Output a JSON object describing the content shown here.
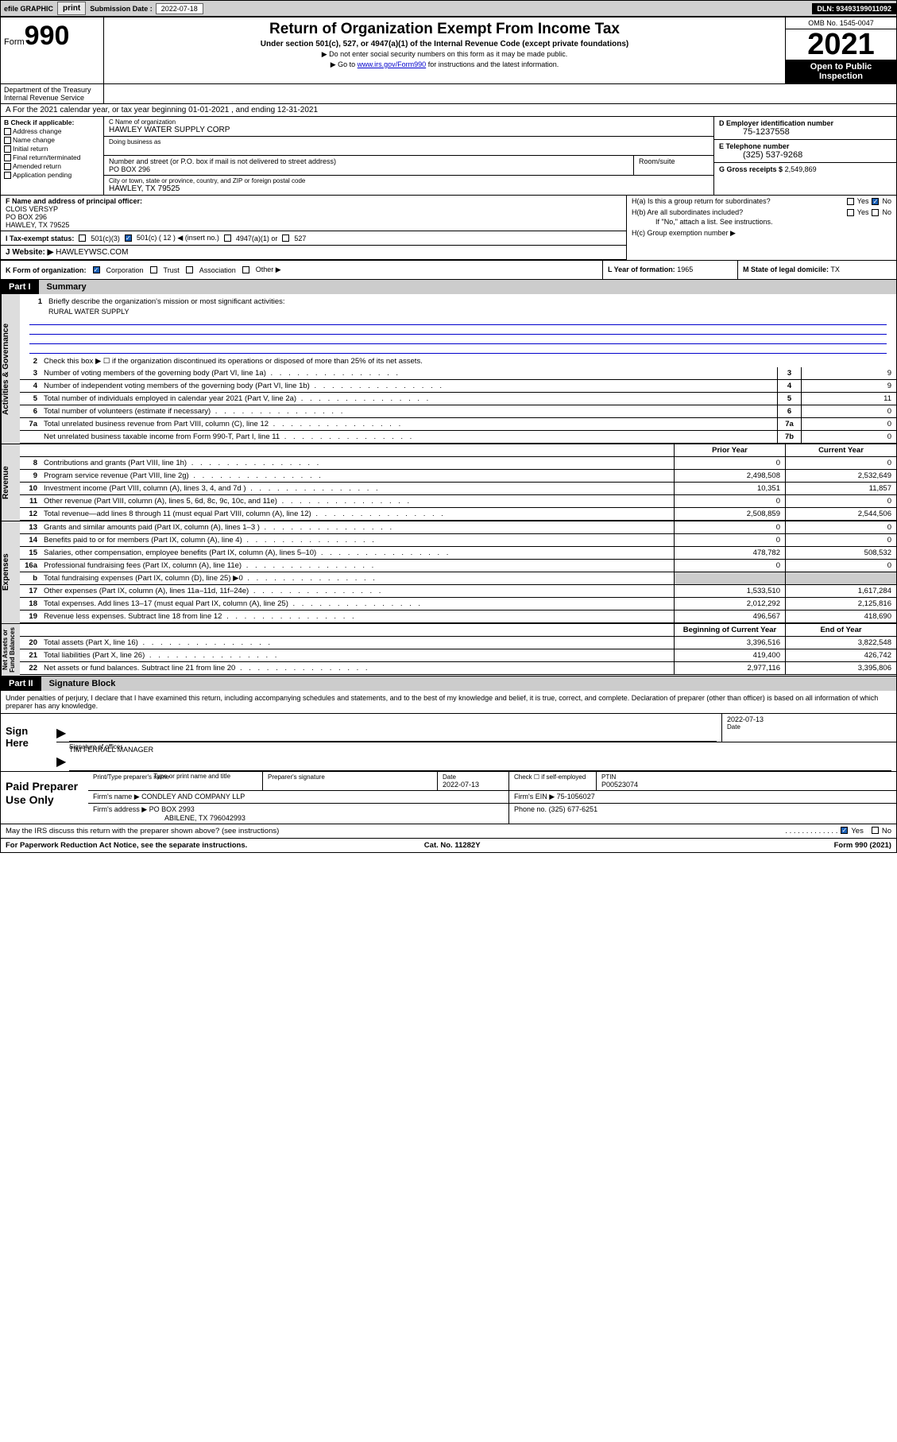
{
  "topbar": {
    "efile": "efile GRAPHIC",
    "print": "print",
    "sub_lbl": "Submission Date :",
    "sub_val": "2022-07-18",
    "dln": "DLN: 93493199011092"
  },
  "header": {
    "form": "Form",
    "form_no": "990",
    "title": "Return of Organization Exempt From Income Tax",
    "sub": "Under section 501(c), 527, or 4947(a)(1) of the Internal Revenue Code (except private foundations)",
    "note1": "▶ Do not enter social security numbers on this form as it may be made public.",
    "note2_pre": "▶ Go to ",
    "note2_link": "www.irs.gov/Form990",
    "note2_post": " for instructions and the latest information.",
    "omb": "OMB No. 1545-0047",
    "year": "2021",
    "open": "Open to Public Inspection",
    "dept": "Department of the Treasury\nInternal Revenue Service"
  },
  "row_a": "A For the 2021 calendar year, or tax year beginning 01-01-2021   , and ending 12-31-2021",
  "col_b": {
    "hdr": "B Check if applicable:",
    "items": [
      "Address change",
      "Name change",
      "Initial return",
      "Final return/terminated",
      "Amended return",
      "Application pending"
    ]
  },
  "col_c": {
    "name_lbl": "C Name of organization",
    "name": "HAWLEY WATER SUPPLY CORP",
    "dba": "Doing business as",
    "addr_lbl": "Number and street (or P.O. box if mail is not delivered to street address)",
    "addr": "PO BOX 296",
    "room_lbl": "Room/suite",
    "city_lbl": "City or town, state or province, country, and ZIP or foreign postal code",
    "city": "HAWLEY, TX  79525"
  },
  "col_d": {
    "ein_lbl": "D Employer identification number",
    "ein": "75-1237558",
    "tel_lbl": "E Telephone number",
    "tel": "(325) 537-9268",
    "gross_lbl": "G Gross receipts $",
    "gross": "2,549,869"
  },
  "f": {
    "lbl": "F Name and address of principal officer:",
    "name": "CLOIS VERSYP",
    "addr1": "PO BOX 296",
    "addr2": "HAWLEY, TX  79525"
  },
  "h": {
    "a": "H(a)  Is this a group return for subordinates?",
    "b": "H(b)  Are all subordinates included?",
    "b_note": "If \"No,\" attach a list. See instructions.",
    "c": "H(c)  Group exemption number ▶",
    "yes": "Yes",
    "no": "No"
  },
  "i": {
    "lbl": "I   Tax-exempt status:",
    "c3": "501(c)(3)",
    "c": "501(c) ( 12 ) ◀ (insert no.)",
    "a1": "4947(a)(1) or",
    "527": "527"
  },
  "j": {
    "lbl": "J   Website: ▶",
    "val": "HAWLEYWSC.COM"
  },
  "k": {
    "lbl": "K Form of organization:",
    "corp": "Corporation",
    "trust": "Trust",
    "assoc": "Association",
    "other": "Other ▶"
  },
  "l": {
    "lbl": "L Year of formation:",
    "val": "1965"
  },
  "m": {
    "lbl": "M State of legal domicile:",
    "val": "TX"
  },
  "parts": {
    "p1": "Part I",
    "p1t": "Summary",
    "p2": "Part II",
    "p2t": "Signature Block"
  },
  "vtabs": {
    "gov": "Activities & Governance",
    "rev": "Revenue",
    "exp": "Expenses",
    "net": "Net Assets or\nFund Balances"
  },
  "sum": {
    "l1": "Briefly describe the organization's mission or most significant activities:",
    "l1v": "RURAL WATER SUPPLY",
    "l2": "Check this box ▶ ☐  if the organization discontinued its operations or disposed of more than 25% of its net assets.",
    "rows_gov": [
      {
        "n": "3",
        "t": "Number of voting members of the governing body (Part VI, line 1a)",
        "c": "3",
        "v": "9"
      },
      {
        "n": "4",
        "t": "Number of independent voting members of the governing body (Part VI, line 1b)",
        "c": "4",
        "v": "9"
      },
      {
        "n": "5",
        "t": "Total number of individuals employed in calendar year 2021 (Part V, line 2a)",
        "c": "5",
        "v": "11"
      },
      {
        "n": "6",
        "t": "Total number of volunteers (estimate if necessary)",
        "c": "6",
        "v": "0"
      },
      {
        "n": "7a",
        "t": "Total unrelated business revenue from Part VIII, column (C), line 12",
        "c": "7a",
        "v": "0"
      },
      {
        "n": "",
        "t": "Net unrelated business taxable income from Form 990-T, Part I, line 11",
        "c": "7b",
        "v": "0"
      }
    ],
    "py": "Prior Year",
    "cy": "Current Year",
    "rows_rev": [
      {
        "n": "8",
        "t": "Contributions and grants (Part VIII, line 1h)",
        "py": "0",
        "cy": "0"
      },
      {
        "n": "9",
        "t": "Program service revenue (Part VIII, line 2g)",
        "py": "2,498,508",
        "cy": "2,532,649"
      },
      {
        "n": "10",
        "t": "Investment income (Part VIII, column (A), lines 3, 4, and 7d )",
        "py": "10,351",
        "cy": "11,857"
      },
      {
        "n": "11",
        "t": "Other revenue (Part VIII, column (A), lines 5, 6d, 8c, 9c, 10c, and 11e)",
        "py": "0",
        "cy": "0"
      },
      {
        "n": "12",
        "t": "Total revenue—add lines 8 through 11 (must equal Part VIII, column (A), line 12)",
        "py": "2,508,859",
        "cy": "2,544,506"
      }
    ],
    "rows_exp": [
      {
        "n": "13",
        "t": "Grants and similar amounts paid (Part IX, column (A), lines 1–3 )",
        "py": "0",
        "cy": "0"
      },
      {
        "n": "14",
        "t": "Benefits paid to or for members (Part IX, column (A), line 4)",
        "py": "0",
        "cy": "0"
      },
      {
        "n": "15",
        "t": "Salaries, other compensation, employee benefits (Part IX, column (A), lines 5–10)",
        "py": "478,782",
        "cy": "508,532"
      },
      {
        "n": "16a",
        "t": "Professional fundraising fees (Part IX, column (A), line 11e)",
        "py": "0",
        "cy": "0"
      },
      {
        "n": "b",
        "t": "Total fundraising expenses (Part IX, column (D), line 25) ▶0",
        "py": "",
        "cy": "",
        "shade": true
      },
      {
        "n": "17",
        "t": "Other expenses (Part IX, column (A), lines 11a–11d, 11f–24e)",
        "py": "1,533,510",
        "cy": "1,617,284"
      },
      {
        "n": "18",
        "t": "Total expenses. Add lines 13–17 (must equal Part IX, column (A), line 25)",
        "py": "2,012,292",
        "cy": "2,125,816"
      },
      {
        "n": "19",
        "t": "Revenue less expenses. Subtract line 18 from line 12",
        "py": "496,567",
        "cy": "418,690"
      }
    ],
    "bcy": "Beginning of Current Year",
    "ecy": "End of Year",
    "rows_net": [
      {
        "n": "20",
        "t": "Total assets (Part X, line 16)",
        "py": "3,396,516",
        "cy": "3,822,548"
      },
      {
        "n": "21",
        "t": "Total liabilities (Part X, line 26)",
        "py": "419,400",
        "cy": "426,742"
      },
      {
        "n": "22",
        "t": "Net assets or fund balances. Subtract line 21 from line 20",
        "py": "2,977,116",
        "cy": "3,395,806"
      }
    ]
  },
  "sig": {
    "intro": "Under penalties of perjury, I declare that I have examined this return, including accompanying schedules and statements, and to the best of my knowledge and belief, it is true, correct, and complete. Declaration of preparer (other than officer) is based on all information of which preparer has any knowledge.",
    "here": "Sign Here",
    "of_lbl": "Signature of officer",
    "date_lbl": "Date",
    "date": "2022-07-13",
    "name": "TIM FERRALL  MANAGER",
    "name_lbl": "Type or print name and title"
  },
  "paid": {
    "title": "Paid Preparer Use Only",
    "pname_lbl": "Print/Type preparer's name",
    "psig_lbl": "Preparer's signature",
    "pdate_lbl": "Date",
    "pdate": "2022-07-13",
    "chk_lbl": "Check ☐ if self-employed",
    "ptin_lbl": "PTIN",
    "ptin": "P00523074",
    "firm_lbl": "Firm's name    ▶",
    "firm": "CONDLEY AND COMPANY LLP",
    "fein_lbl": "Firm's EIN ▶",
    "fein": "75-1056027",
    "faddr_lbl": "Firm's address ▶",
    "faddr1": "PO BOX 2993",
    "faddr2": "ABILENE, TX  796042993",
    "phone_lbl": "Phone no.",
    "phone": "(325) 677-6251"
  },
  "may": {
    "txt": "May the IRS discuss this return with the preparer shown above? (see instructions)",
    "yes": "Yes",
    "no": "No"
  },
  "footer": {
    "l": "For Paperwork Reduction Act Notice, see the separate instructions.",
    "m": "Cat. No. 11282Y",
    "r": "Form 990 (2021)"
  }
}
